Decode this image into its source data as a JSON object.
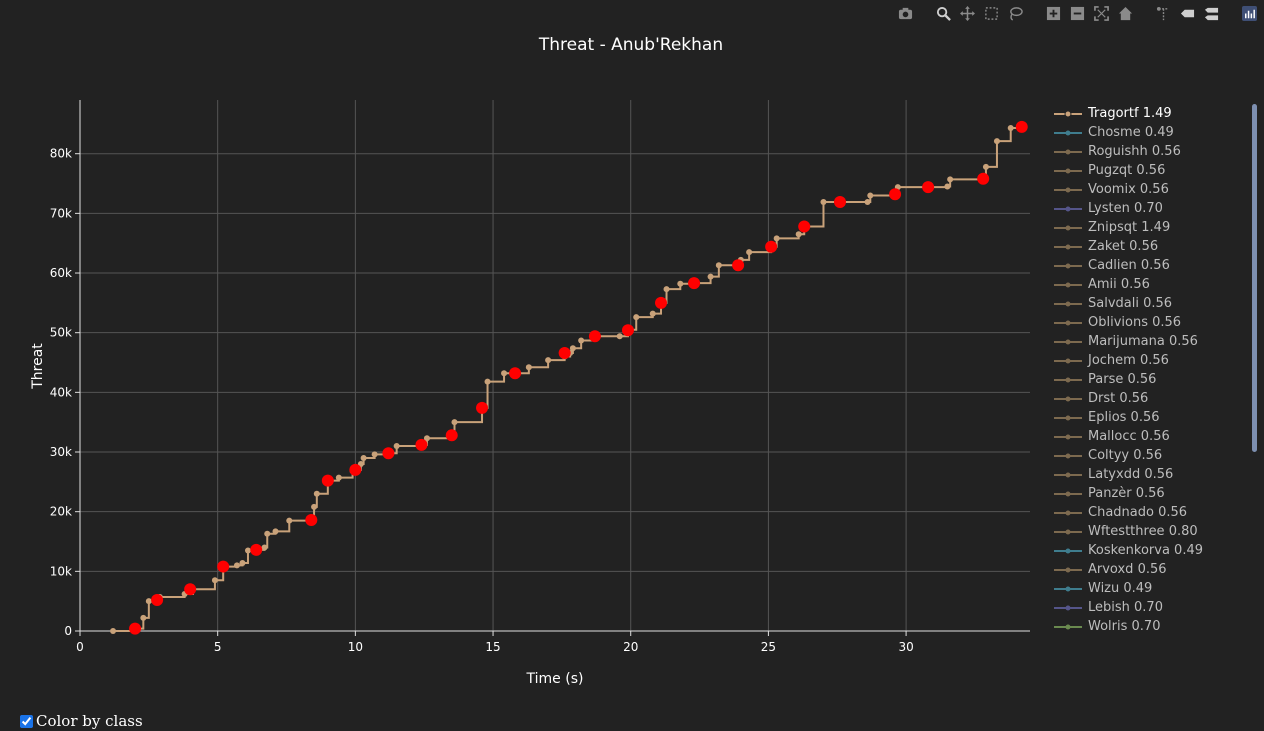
{
  "modebar": {
    "icons": [
      "camera-icon",
      "zoom-icon",
      "pan-icon",
      "box-select-icon",
      "lasso-icon",
      "zoom-in-icon",
      "zoom-out-icon",
      "autoscale-icon",
      "home-icon",
      "spike-lines-icon",
      "hover-closest-icon",
      "hover-compare-icon",
      "plotly-logo-icon"
    ]
  },
  "chart_data": {
    "type": "line",
    "title": "Threat - Anub'Rekhan",
    "xlabel": "Time (s)",
    "ylabel": "Threat",
    "xlim": [
      0,
      34.5
    ],
    "ylim": [
      0,
      89000
    ],
    "xticks": [
      0,
      5,
      10,
      15,
      20,
      25,
      30
    ],
    "xtick_labels": [
      "0",
      "5",
      "10",
      "15",
      "20",
      "25",
      "30"
    ],
    "yticks": [
      0,
      10000,
      20000,
      30000,
      40000,
      50000,
      60000,
      70000,
      80000
    ],
    "ytick_labels": [
      "0",
      "10k",
      "20k",
      "30k",
      "40k",
      "50k",
      "60k",
      "70k",
      "80k"
    ],
    "grid": true,
    "line_shape": "step",
    "legend_position": "right",
    "series": [
      {
        "name": "Tragortf 1.49",
        "color": "#c9a27a",
        "x": [
          1.2,
          2.0,
          2.3,
          2.5,
          2.8,
          2.9,
          3.8,
          4.1,
          4.9,
          5.2,
          5.7,
          5.9,
          6.1,
          6.4,
          6.7,
          6.8,
          7.1,
          7.6,
          8.4,
          8.5,
          8.6,
          9.0,
          9.4,
          9.9,
          10.0,
          10.2,
          10.3,
          10.7,
          11.2,
          11.5,
          12.5,
          12.6,
          13.5,
          13.6,
          14.6,
          14.8,
          15.4,
          15.8,
          16.3,
          17.0,
          17.6,
          17.8,
          17.9,
          18.2,
          18.7,
          19.6,
          19.9,
          20.0,
          20.2,
          20.8,
          21.1,
          21.3,
          21.8,
          22.3,
          22.9,
          23.2,
          23.9,
          24.0,
          24.3,
          25.1,
          25.3,
          26.1,
          26.3,
          27.0,
          27.6,
          28.6,
          28.7,
          29.6,
          29.7,
          30.8,
          31.5,
          31.6,
          32.8,
          32.9,
          33.3,
          33.8,
          34.2
        ],
        "y": [
          0,
          400,
          2200,
          5000,
          5200,
          5700,
          6200,
          7000,
          8500,
          10800,
          11000,
          11400,
          13500,
          13600,
          14000,
          16300,
          16700,
          18500,
          18600,
          20800,
          23000,
          25200,
          25700,
          26800,
          27000,
          28000,
          29000,
          29600,
          29800,
          31000,
          31200,
          32300,
          32800,
          35000,
          37400,
          41800,
          43200,
          43200,
          44200,
          45400,
          46000,
          46600,
          47400,
          48700,
          49400,
          49400,
          50400,
          50500,
          52600,
          53200,
          55000,
          57300,
          58200,
          58300,
          59400,
          61300,
          61300,
          62200,
          63500,
          64400,
          65800,
          66500,
          67800,
          71900,
          71900,
          71900,
          73000,
          73200,
          74400,
          74400,
          74500,
          75700,
          75800,
          77800,
          82100,
          84300,
          84500
        ],
        "highlight_x": [
          2.0,
          2.8,
          4.0,
          5.2,
          6.4,
          8.4,
          9.0,
          10.0,
          11.2,
          12.4,
          13.5,
          14.6,
          15.8,
          17.6,
          18.7,
          19.9,
          21.1,
          22.3,
          23.9,
          25.1,
          26.3,
          27.6,
          29.6,
          30.8,
          32.8,
          34.2
        ],
        "highlight_y": [
          400,
          5200,
          7000,
          10800,
          13600,
          18600,
          25200,
          27000,
          29800,
          31200,
          32800,
          37400,
          43200,
          46600,
          49400,
          50400,
          55000,
          58300,
          61300,
          64400,
          67800,
          71900,
          73200,
          74400,
          75800,
          84500
        ]
      }
    ]
  },
  "legend": {
    "items": [
      {
        "label": "Tragortf 1.49",
        "color": "#c9a27a",
        "active": true
      },
      {
        "label": "Chosme 0.49",
        "color": "#3f7d8e"
      },
      {
        "label": "Roguishh 0.56",
        "color": "#7d6a4f"
      },
      {
        "label": "Pugzqt 0.56",
        "color": "#7d6a4f"
      },
      {
        "label": "Voomix 0.56",
        "color": "#7d6a4f"
      },
      {
        "label": "Lysten 0.70",
        "color": "#55558a"
      },
      {
        "label": "Znipsqt 1.49",
        "color": "#7d6a4f"
      },
      {
        "label": "Zaket 0.56",
        "color": "#7d6a4f"
      },
      {
        "label": "Cadlien 0.56",
        "color": "#7d6a4f"
      },
      {
        "label": "Amii 0.56",
        "color": "#7d6a4f"
      },
      {
        "label": "Salvdali 0.56",
        "color": "#7d6a4f"
      },
      {
        "label": "Oblivions 0.56",
        "color": "#7d6a4f"
      },
      {
        "label": "Marijumana 0.56",
        "color": "#7d6a4f"
      },
      {
        "label": "Jochem 0.56",
        "color": "#7d6a4f"
      },
      {
        "label": "Parse 0.56",
        "color": "#7d6a4f"
      },
      {
        "label": "Drst 0.56",
        "color": "#7d6a4f"
      },
      {
        "label": "Eplios 0.56",
        "color": "#7d6a4f"
      },
      {
        "label": "Mallocc 0.56",
        "color": "#7d6a4f"
      },
      {
        "label": "Coltyy 0.56",
        "color": "#7d6a4f"
      },
      {
        "label": "Latyxdd 0.56",
        "color": "#7d6a4f"
      },
      {
        "label": "Panzèr 0.56",
        "color": "#7d6a4f"
      },
      {
        "label": "Chadnado 0.56",
        "color": "#7d6a4f"
      },
      {
        "label": "Wftestthree 0.80",
        "color": "#7d6a4f"
      },
      {
        "label": "Koskenkorva 0.49",
        "color": "#3f7d8e"
      },
      {
        "label": "Arvoxd 0.56",
        "color": "#7d6a4f"
      },
      {
        "label": "Wizu 0.49",
        "color": "#3f7d8e"
      },
      {
        "label": "Lebish 0.70",
        "color": "#55558a"
      },
      {
        "label": "Wolris 0.70",
        "color": "#6a8a4f"
      }
    ]
  },
  "controls": {
    "color_by_class_label": "Color by class",
    "color_by_class_checked": true
  }
}
